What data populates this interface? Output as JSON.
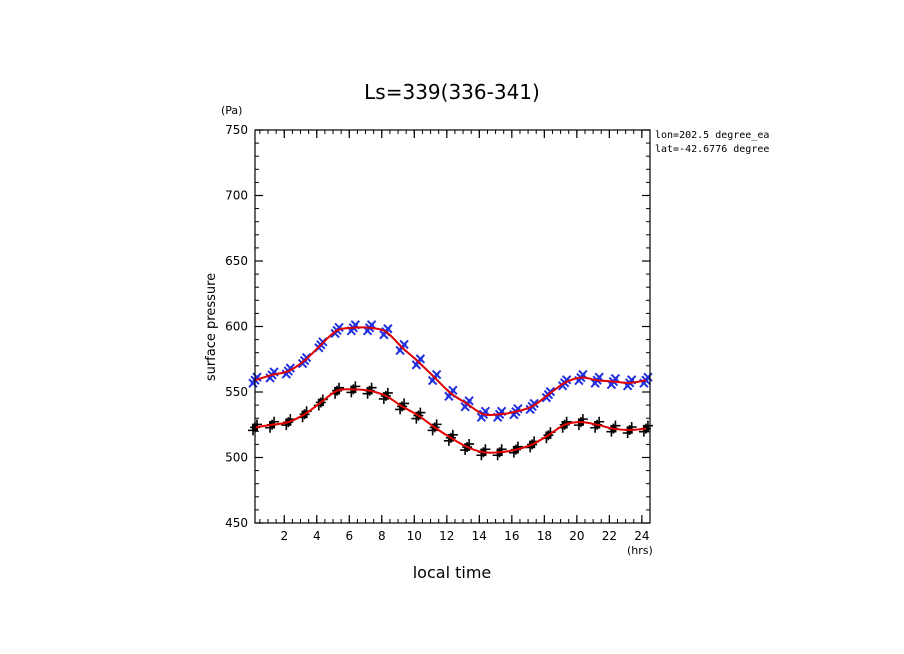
{
  "chart_data": {
    "type": "scatter",
    "title": "Ls=339(336-341)",
    "xlabel": "local time",
    "ylabel": "surface pressure",
    "x_unit": "(hrs)",
    "y_unit": "(Pa)",
    "xlim": [
      0.2,
      24.5
    ],
    "ylim": [
      450,
      750
    ],
    "x_ticks": [
      2,
      4,
      6,
      8,
      10,
      12,
      14,
      16,
      18,
      20,
      22,
      24
    ],
    "y_ticks": [
      450,
      500,
      550,
      600,
      650,
      700,
      750
    ],
    "x_minor_step": 0.5,
    "y_minor_step": 10,
    "annotations": [
      "lon=202.5 degree_ea",
      "lat=-42.6776 degree"
    ],
    "series": [
      {
        "marker": "x",
        "color": "#2030e0",
        "fit_color": "#e00000",
        "x": [
          0.2,
          1.25,
          2.25,
          3.25,
          4.25,
          5.25,
          6.25,
          7.25,
          8.25,
          9.25,
          10.25,
          11.25,
          12.25,
          13.25,
          14.25,
          15.25,
          16.25,
          17.25,
          18.25,
          19.25,
          20.25,
          21.25,
          22.25,
          23.25,
          24.25
        ],
        "y": [
          559,
          563,
          566,
          574,
          586,
          597,
          599,
          599,
          596,
          584,
          573,
          561,
          549,
          541,
          533,
          533,
          535,
          539,
          548,
          557,
          561,
          559,
          558,
          557,
          559
        ]
      },
      {
        "marker": "plus",
        "color": "#000000",
        "fit_color": "#e00000",
        "x": [
          0.2,
          1.25,
          2.25,
          3.25,
          4.25,
          5.25,
          6.25,
          7.25,
          8.25,
          9.25,
          10.25,
          11.25,
          12.25,
          13.25,
          14.25,
          15.25,
          16.25,
          17.25,
          18.25,
          19.25,
          20.25,
          21.25,
          22.25,
          23.25,
          24.25
        ],
        "y": [
          523,
          525,
          527,
          533,
          542,
          551,
          552,
          551,
          547,
          539,
          532,
          523,
          515,
          508,
          504,
          504,
          506,
          510,
          517,
          525,
          527,
          525,
          522,
          521,
          522
        ]
      }
    ]
  }
}
